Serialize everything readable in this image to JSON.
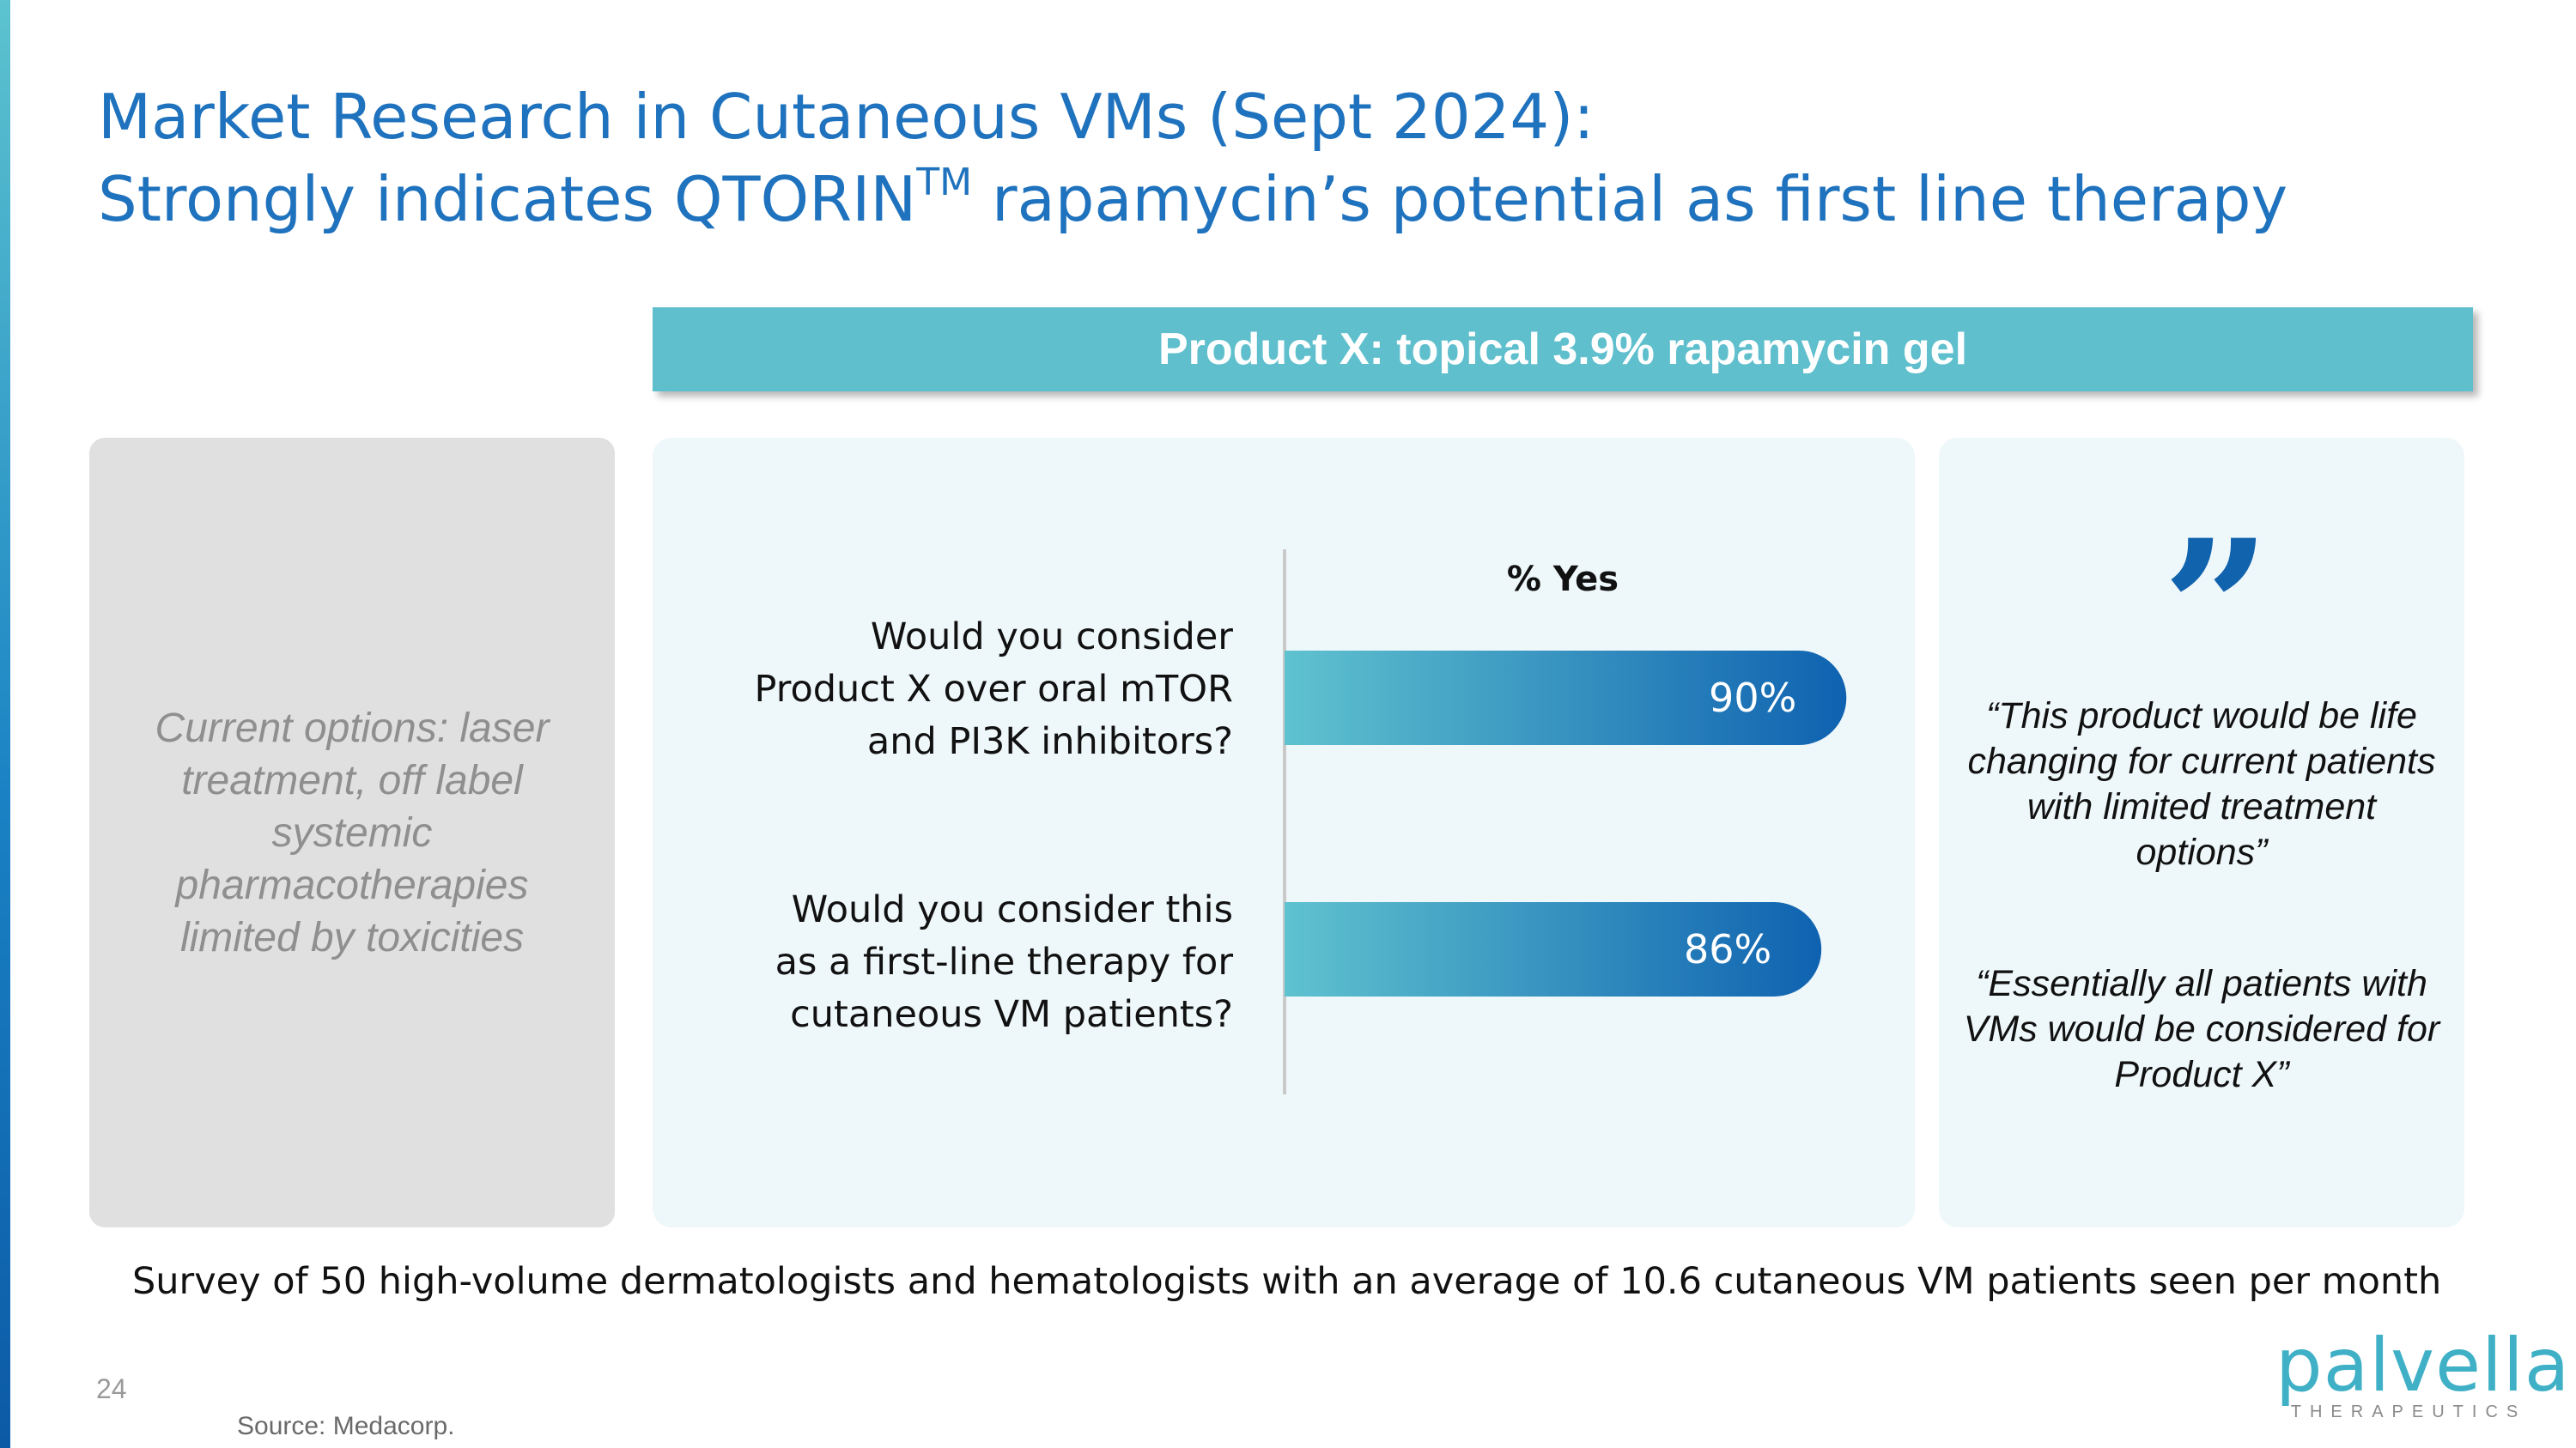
{
  "slide": {
    "title_line1": "Market Research in Cutaneous VMs (Sept 2024):",
    "title_line2_pre": "Strongly indicates QTORIN",
    "title_tm": "TM",
    "title_line2_post": " rapamycin’s potential as first line therapy",
    "page_number": "24",
    "source": "Source: Medacorp.",
    "survey_note": "Survey of 50 high-volume dermatologists and hematologists with an average of 10.6 cutaneous VM patients seen per month"
  },
  "header_bar": {
    "label": "Product X: topical 3.9% rapamycin gel"
  },
  "left_panel": {
    "text": "Current options: laser treatment, off label systemic pharmacotherapies limited by toxicities"
  },
  "quotes": {
    "quote1": "“This product would be life changing for current patients with limited treatment options”",
    "quote2": "“Essentially all patients with VMs would be considered for Product X”"
  },
  "logo": {
    "word": "palvella",
    "sub": "THERAPEUTICS"
  },
  "colors": {
    "title_blue": "#1f72bd",
    "header_teal": "#5fbfcd",
    "bar_start": "#5fc2cf",
    "bar_end": "#0f62b0",
    "quote_mark": "#1263ae"
  },
  "chart_data": {
    "type": "bar",
    "orientation": "horizontal",
    "xlabel": "% Yes",
    "categories": [
      "Would you consider Product X over oral mTOR and PI3K inhibitors?",
      "Would you consider this as a first-line therapy for cutaneous VM patients?"
    ],
    "values": [
      90,
      86
    ],
    "data_labels": [
      "90%",
      "86%"
    ],
    "xlim": [
      0,
      100
    ],
    "grid": false,
    "legend": "none"
  }
}
